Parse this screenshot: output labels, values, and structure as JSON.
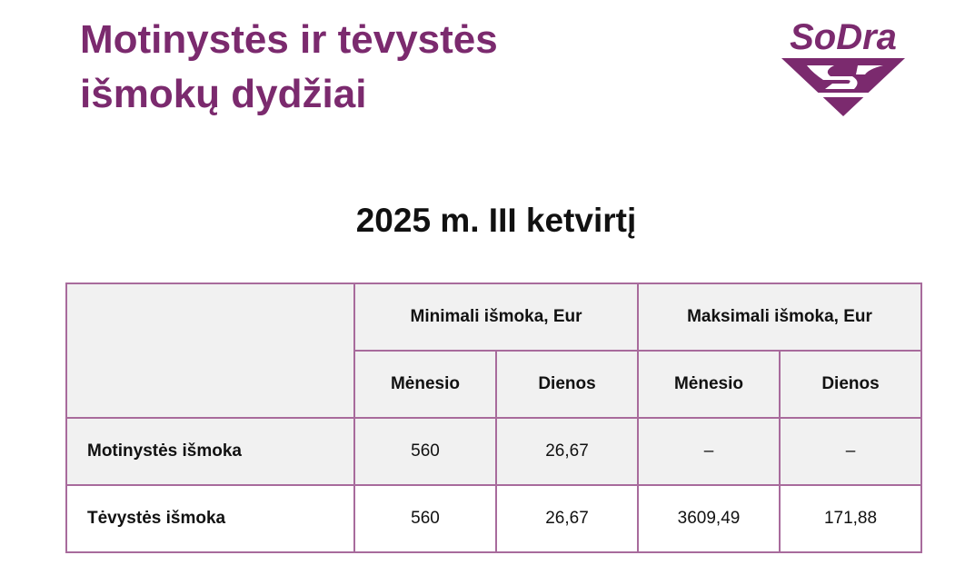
{
  "title": {
    "line1": "Motinystės ir tėvystės",
    "line2": "išmokų dydžiai"
  },
  "logo": {
    "text": "SoDra",
    "color": "#7b2a6e"
  },
  "subtitle": "2025 m. III ketvirtį",
  "table": {
    "group_headers": [
      "Minimali išmoka, Eur",
      "Maksimali išmoka, Eur"
    ],
    "sub_headers": [
      "Mėnesio",
      "Dienos",
      "Mėnesio",
      "Dienos"
    ],
    "rows": [
      {
        "label": "Motinystės išmoka",
        "values": [
          "560",
          "26,67",
          "–",
          "–"
        ]
      },
      {
        "label": "Tėvystės išmoka",
        "values": [
          "560",
          "26,67",
          "3609,49",
          "171,88"
        ]
      }
    ]
  }
}
